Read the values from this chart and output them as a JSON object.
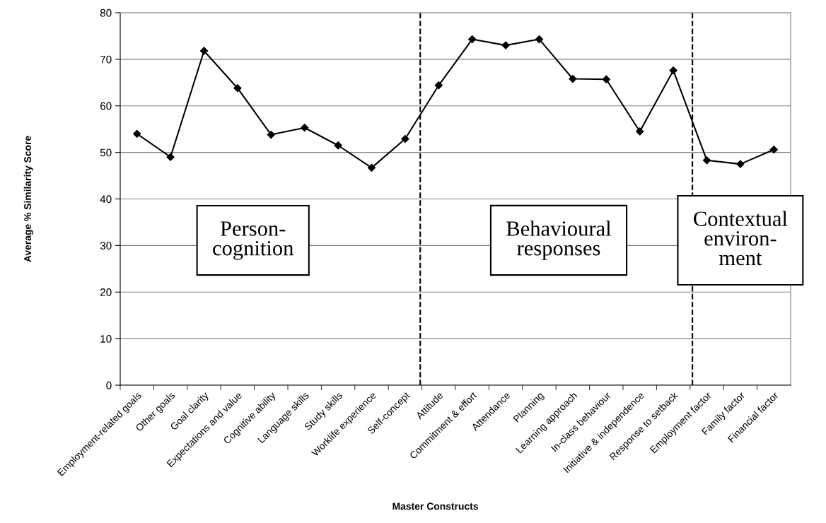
{
  "chart_data": {
    "type": "line",
    "xlabel": "Master Constructs",
    "ylabel": "Average % Similarity Score",
    "categories": [
      "Employment-related goals",
      "Other goals",
      "Goal clarity",
      "Expectations and value",
      "Cognitive ability",
      "Language skills",
      "Study skills",
      "Worklife experience",
      "Self-concept",
      "Attitude",
      "Commitment & effort",
      "Attendance",
      "Planning",
      "Learning approach",
      "In-class behaviour",
      "Initiative & independence",
      "Response to setback",
      "Employment factor",
      "Family factor",
      "Financial factor"
    ],
    "values": [
      54.0,
      49.0,
      71.8,
      63.8,
      53.8,
      55.3,
      51.5,
      46.7,
      52.9,
      64.4,
      74.3,
      73.0,
      74.3,
      65.8,
      65.7,
      54.5,
      67.6,
      48.3,
      47.5,
      50.6
    ],
    "color": "#000000",
    "marker": "diamond",
    "line_style": "solid",
    "ylim": [
      0,
      80
    ],
    "yticks": [
      0,
      10,
      20,
      30,
      40,
      50,
      60,
      70,
      80
    ],
    "grid": "y",
    "annotations": [
      "Person-\ncognition",
      "Behavioural\nresponses",
      "Contextual\nenviron-\nment"
    ]
  }
}
